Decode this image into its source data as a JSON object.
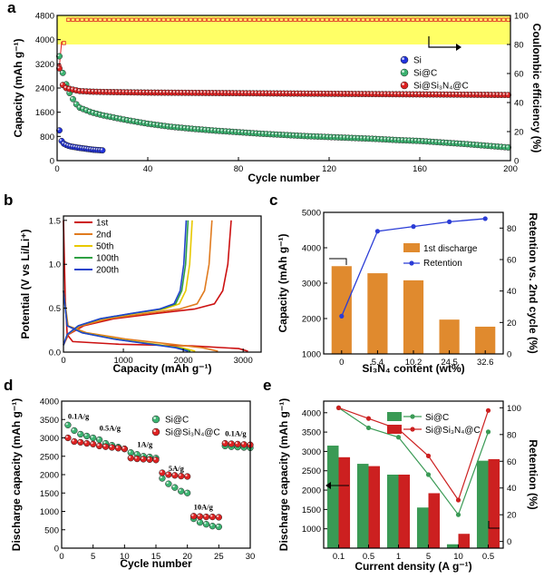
{
  "panels": [
    {
      "label": "a",
      "chart_data": {
        "type": "scatter",
        "xlabel": "Cycle number",
        "ylabel": "Capacity (mAh g⁻¹)",
        "y2label": "Coulombic efficiency (%)",
        "xlim": [
          0,
          200
        ],
        "ylim": [
          0,
          4800
        ],
        "y2lim": [
          0,
          100
        ],
        "xticks": [
          0,
          40,
          80,
          120,
          160,
          200
        ],
        "yticks": [
          0,
          800,
          1600,
          2400,
          3200,
          4000,
          4800
        ],
        "y2ticks": [
          0,
          20,
          40,
          60,
          80,
          100
        ],
        "highlight_band": {
          "y2_from": 80,
          "y2_to": 100,
          "color": "#ffff66"
        },
        "legend_position": "center-right",
        "series": [
          {
            "name": "Si",
            "color": "#2233dd",
            "x": [
              1,
              2,
              3,
              4,
              5,
              6,
              7,
              8,
              9,
              10,
              11,
              12,
              13,
              14,
              15,
              16,
              17,
              18,
              19,
              20
            ],
            "y": [
              1000,
              650,
              560,
              520,
              490,
              470,
              455,
              445,
              430,
              420,
              410,
              400,
              390,
              380,
              370,
              360,
              355,
              350,
              345,
              340
            ]
          },
          {
            "name": "Si@C",
            "color": "#3cb371",
            "x": [
              1,
              2,
              3,
              5,
              8,
              10,
              15,
              20,
              30,
              40,
              50,
              60,
              70,
              80,
              90,
              100,
              110,
              120,
              130,
              140,
              150,
              160,
              170,
              180,
              190,
              200
            ],
            "y": [
              3450,
              3050,
              2750,
              2300,
              1900,
              1750,
              1600,
              1500,
              1350,
              1220,
              1120,
              1050,
              990,
              940,
              890,
              850,
              810,
              780,
              750,
              720,
              680,
              650,
              600,
              550,
              490,
              430
            ]
          },
          {
            "name": "Si@Si₃N₄@C",
            "color": "#dd2222",
            "x": [
              1,
              2,
              3,
              4,
              5,
              8,
              10,
              15,
              20,
              30,
              40,
              60,
              80,
              100,
              120,
              140,
              160,
              180,
              200
            ],
            "y": [
              3050,
              2550,
              2450,
              2400,
              2380,
              2330,
              2300,
              2280,
              2270,
              2260,
              2250,
              2240,
              2230,
              2220,
              2210,
              2200,
              2190,
              2180,
              2170
            ]
          }
        ],
        "coulombic_efficiency": {
          "x": [
            1,
            2,
            3,
            5,
            10,
            50,
            100,
            150,
            200
          ],
          "y2": [
            65,
            82,
            90,
            94,
            96,
            97,
            97,
            97,
            97
          ]
        }
      }
    },
    {
      "label": "b",
      "chart_data": {
        "type": "line",
        "xlabel": "Capacity (mAh g⁻¹)",
        "ylabel": "Potential (V vs Li/Li⁺)",
        "xlim": [
          0,
          3300
        ],
        "ylim": [
          0,
          1.55
        ],
        "xticks": [
          0,
          1000,
          2000,
          3000
        ],
        "yticks": [
          0.0,
          0.5,
          1.0,
          1.5
        ],
        "legend_position": "top-left",
        "series": [
          {
            "name": "1st",
            "color": "#cc1111",
            "charge_cap": 2800,
            "discharge_cap": 3080
          },
          {
            "name": "2nd",
            "color": "#e07b1f",
            "charge_cap": 2480,
            "discharge_cap": 2580
          },
          {
            "name": "50th",
            "color": "#e8c800",
            "charge_cap": 2150,
            "discharge_cap": 2200
          },
          {
            "name": "100th",
            "color": "#2ea043",
            "charge_cap": 2080,
            "discharge_cap": 2120
          },
          {
            "name": "200th",
            "color": "#2244cc",
            "charge_cap": 2050,
            "discharge_cap": 2080
          }
        ]
      }
    },
    {
      "label": "c",
      "chart_data": {
        "type": "bar",
        "xlabel": "Si₃N₄ content (wt%)",
        "ylabel": "Capacity (mAh g⁻¹)",
        "y2label": "Retention vs. 2nd cycle (%)",
        "categories": [
          "0",
          "5.4",
          "10.2",
          "24.5",
          "32.6"
        ],
        "ylim": [
          1000,
          5000
        ],
        "y2lim": [
          0,
          90
        ],
        "yticks": [
          1000,
          2000,
          3000,
          4000,
          5000
        ],
        "y2ticks": [
          0,
          20,
          40,
          60,
          80
        ],
        "legend_position": "center-right",
        "series": [
          {
            "name": "1st discharge",
            "color": "#e08a2e",
            "type": "bar",
            "values": [
              3480,
              3280,
              3080,
              1970,
              1770
            ]
          },
          {
            "name": "Retention",
            "color": "#2a3cd6",
            "type": "line",
            "values": [
              24,
              78,
              81,
              84,
              86
            ]
          }
        ]
      }
    },
    {
      "label": "d",
      "chart_data": {
        "type": "scatter",
        "xlabel": "Cycle number",
        "ylabel": "Discharge capacity (mAh g⁻¹)",
        "xlim": [
          0,
          30
        ],
        "ylim": [
          0,
          4000
        ],
        "xticks": [
          0,
          5,
          10,
          15,
          20,
          25,
          30
        ],
        "yticks": [
          0,
          500,
          1000,
          1500,
          2000,
          2500,
          3000,
          3500,
          4000
        ],
        "legend_position": "top-right",
        "annotations": [
          "0.1A/g",
          "0.5A/g",
          "1A/g",
          "5A/g",
          "10A/g",
          "0.1A/g"
        ],
        "series": [
          {
            "name": "Si@C",
            "color": "#3cb371",
            "x": [
              1,
              2,
              3,
              4,
              5,
              6,
              7,
              8,
              9,
              10,
              11,
              12,
              13,
              14,
              15,
              16,
              17,
              18,
              19,
              20,
              21,
              22,
              23,
              24,
              25,
              26,
              27,
              28,
              29,
              30
            ],
            "y": [
              3350,
              3200,
              3100,
              3050,
              3000,
              2950,
              2850,
              2800,
              2750,
              2700,
              2600,
              2550,
              2500,
              2480,
              2450,
              1900,
              1750,
              1650,
              1550,
              1500,
              800,
              700,
              650,
              600,
              580,
              2780,
              2760,
              2750,
              2740,
              2730
            ]
          },
          {
            "name": "Si@Si₃N₄@C",
            "color": "#dd2222",
            "x": [
              1,
              2,
              3,
              4,
              5,
              6,
              7,
              8,
              9,
              10,
              11,
              12,
              13,
              14,
              15,
              16,
              17,
              18,
              19,
              20,
              21,
              22,
              23,
              24,
              25,
              26,
              27,
              28,
              29,
              30
            ],
            "y": [
              3000,
              2900,
              2880,
              2850,
              2830,
              2780,
              2760,
              2740,
              2720,
              2700,
              2450,
              2430,
              2420,
              2410,
              2400,
              2050,
              2000,
              1980,
              1960,
              1950,
              870,
              860,
              850,
              850,
              840,
              2850,
              2840,
              2830,
              2820,
              2810
            ]
          }
        ]
      }
    },
    {
      "label": "e",
      "chart_data": {
        "type": "bar",
        "xlabel": "Current density (A g⁻¹)",
        "ylabel": "Discharge capacity (mAh g⁻¹)",
        "y2label": "Retention (%)",
        "categories": [
          "0.1",
          "0.5",
          "1",
          "5",
          "10",
          "0.5"
        ],
        "ylim": [
          500,
          4300
        ],
        "y2lim": [
          -5,
          105
        ],
        "yticks": [
          1000,
          1500,
          2000,
          2500,
          3000,
          3500,
          4000
        ],
        "y2ticks": [
          0,
          20,
          40,
          60,
          80,
          100
        ],
        "legend_position": "top-center",
        "series": [
          {
            "name": "Si@C",
            "color": "#3a9a55",
            "type": "bar",
            "values": [
              3150,
              2680,
              2400,
              1550,
              600,
              2760
            ]
          },
          {
            "name": "Si@Si₃N₄@C",
            "color": "#cc2020",
            "type": "bar",
            "values": [
              2850,
              2620,
              2400,
              1920,
              870,
              2800
            ]
          },
          {
            "name": "Si@C retention",
            "color": "#3a9a55",
            "type": "line",
            "values": [
              100,
              85,
              78,
              50,
              20,
              82
            ]
          },
          {
            "name": "Si@Si₃N₄@C retention",
            "color": "#cc2020",
            "type": "line",
            "values": [
              100,
              92,
              84,
              64,
              31,
              98
            ]
          }
        ]
      }
    }
  ]
}
